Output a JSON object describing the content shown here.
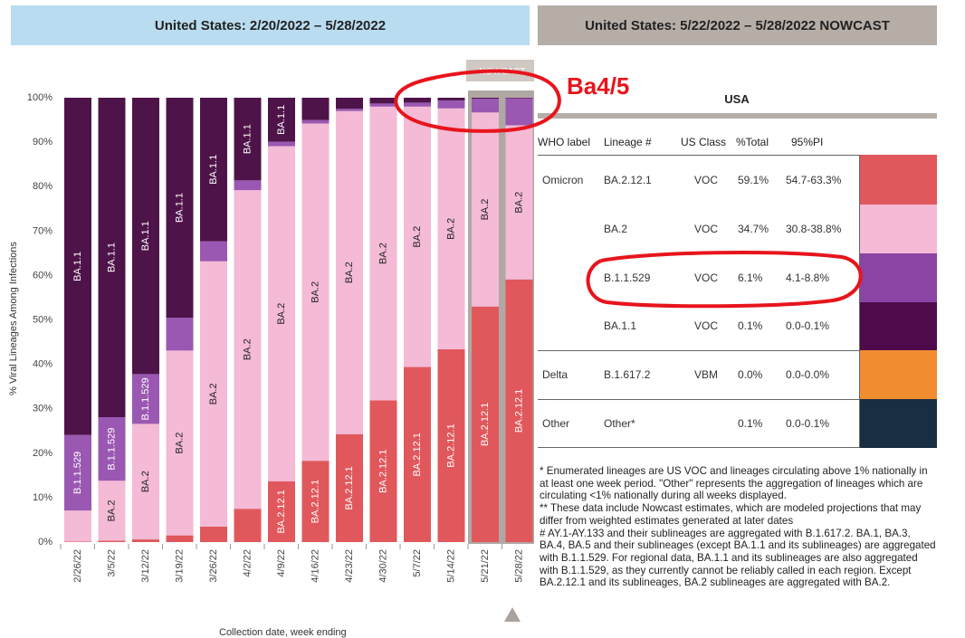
{
  "left_header": "United States: 2/20/2022 – 5/28/2022",
  "right_header": "United States: 5/22/2022 – 5/28/2022 NOWCAST",
  "nowcast_tag": "NOWCAST",
  "annotation": "Ba4/5",
  "chart_data": {
    "type": "bar",
    "stacked": true,
    "ylabel": "% Viral Lineages Among Infections",
    "xlabel": "Collection date, week ending",
    "ylim": [
      0,
      100
    ],
    "yticks": [
      "0%",
      "10%",
      "20%",
      "30%",
      "40%",
      "50%",
      "60%",
      "70%",
      "80%",
      "90%",
      "100%"
    ],
    "grid": false,
    "categories": [
      "2/26/22",
      "3/5/22",
      "3/12/22",
      "3/19/22",
      "3/26/22",
      "4/2/22",
      "4/9/22",
      "4/16/22",
      "4/23/22",
      "4/30/22",
      "5/7/22",
      "5/14/22",
      "5/21/22",
      "5/28/22"
    ],
    "nowcast_categories": [
      "5/21/22",
      "5/28/22"
    ],
    "series": [
      {
        "name": "BA.2.12.1",
        "color": "#e0585c",
        "values": [
          0.1,
          0.3,
          0.6,
          1.5,
          3.5,
          7.5,
          13.7,
          18.3,
          24.3,
          31.9,
          39.4,
          43.4,
          53.0,
          59.1
        ]
      },
      {
        "name": "BA.2",
        "color": "#f4bad6",
        "values": [
          7.0,
          13.5,
          26.0,
          41.6,
          59.7,
          71.7,
          75.4,
          75.9,
          72.7,
          66.1,
          58.6,
          54.2,
          43.7,
          34.7
        ]
      },
      {
        "name": "B.1.1.529",
        "color": "#9a58b2",
        "values": [
          17.0,
          14.3,
          11.2,
          7.4,
          4.5,
          2.2,
          1.0,
          0.8,
          0.5,
          0.7,
          0.9,
          1.8,
          3.1,
          6.1
        ]
      },
      {
        "name": "BA.1.1",
        "color": "#4e1449",
        "values": [
          75.9,
          71.9,
          62.2,
          49.5,
          32.3,
          18.6,
          9.9,
          5.0,
          2.5,
          1.3,
          1.1,
          0.6,
          0.2,
          0.1
        ]
      }
    ],
    "bar_labels": [
      {
        "cat": 0,
        "series": 2,
        "text": "B.1.1.529"
      },
      {
        "cat": 0,
        "series": 3,
        "text": "BA.1.1"
      },
      {
        "cat": 1,
        "series": 1,
        "text": "BA.2"
      },
      {
        "cat": 1,
        "series": 2,
        "text": "B.1.1.529"
      },
      {
        "cat": 1,
        "series": 3,
        "text": "BA.1.1"
      },
      {
        "cat": 2,
        "series": 1,
        "text": "BA.2"
      },
      {
        "cat": 2,
        "series": 2,
        "text": "B.1.1.529"
      },
      {
        "cat": 2,
        "series": 3,
        "text": "BA.1.1"
      },
      {
        "cat": 3,
        "series": 1,
        "text": "BA.2"
      },
      {
        "cat": 3,
        "series": 3,
        "text": "BA.1.1"
      },
      {
        "cat": 4,
        "series": 1,
        "text": "BA.2"
      },
      {
        "cat": 4,
        "series": 3,
        "text": "BA.1.1"
      },
      {
        "cat": 5,
        "series": 1,
        "text": "BA.2"
      },
      {
        "cat": 5,
        "series": 3,
        "text": "BA.1.1"
      },
      {
        "cat": 6,
        "series": 0,
        "text": "BA.2.12.1"
      },
      {
        "cat": 6,
        "series": 1,
        "text": "BA.2"
      },
      {
        "cat": 6,
        "series": 3,
        "text": "BA.1.1"
      },
      {
        "cat": 7,
        "series": 0,
        "text": "BA.2.12.1"
      },
      {
        "cat": 7,
        "series": 1,
        "text": "BA.2"
      },
      {
        "cat": 8,
        "series": 0,
        "text": "BA.2.12.1"
      },
      {
        "cat": 8,
        "series": 1,
        "text": "BA.2"
      },
      {
        "cat": 9,
        "series": 0,
        "text": "BA.2.12.1"
      },
      {
        "cat": 9,
        "series": 1,
        "text": "BA.2"
      },
      {
        "cat": 10,
        "series": 0,
        "text": "BA.2.12.1"
      },
      {
        "cat": 10,
        "series": 1,
        "text": "BA.2"
      },
      {
        "cat": 11,
        "series": 0,
        "text": "BA.2.12.1"
      },
      {
        "cat": 11,
        "series": 1,
        "text": "BA.2"
      },
      {
        "cat": 12,
        "series": 0,
        "text": "BA.2.12.1"
      },
      {
        "cat": 12,
        "series": 1,
        "text": "BA.2"
      },
      {
        "cat": 13,
        "series": 0,
        "text": "BA.2.12.1"
      },
      {
        "cat": 13,
        "series": 1,
        "text": "BA.2"
      }
    ]
  },
  "table": {
    "title": "USA",
    "headers": {
      "who": "WHO label",
      "lineage": "Lineage #",
      "class": "US Class",
      "total": "%Total",
      "pi": "95%PI"
    },
    "rows": [
      {
        "who": "Omicron",
        "lineage": "BA.2.12.1",
        "class": "VOC",
        "total": "59.1%",
        "pi": "54.7-63.3%",
        "color": "#e0585c"
      },
      {
        "who": "",
        "lineage": "BA.2",
        "class": "VOC",
        "total": "34.7%",
        "pi": "30.8-38.8%",
        "color": "#f4bad6"
      },
      {
        "who": "",
        "lineage": "B.1.1.529",
        "class": "VOC",
        "total": "6.1%",
        "pi": "4.1-8.8%",
        "color": "#8a44a4"
      },
      {
        "who": "",
        "lineage": "BA.1.1",
        "class": "VOC",
        "total": "0.1%",
        "pi": "0.0-0.1%",
        "color": "#4e0a4a"
      },
      {
        "who": "Delta",
        "lineage": "B.1.617.2",
        "class": "VBM",
        "total": "0.0%",
        "pi": "0.0-0.0%",
        "color": "#f28c30"
      },
      {
        "who": "Other",
        "lineage": "Other*",
        "class": "",
        "total": "0.1%",
        "pi": "0.0-0.1%",
        "color": "#182e42"
      }
    ]
  },
  "notes": [
    "*      Enumerated lineages are US VOC and lineages circulating above 1% nationally in at least one week period. \"Other\" represents the aggregation of lineages which are circulating <1% nationally during all weeks displayed.",
    "**     These data include Nowcast estimates, which are modeled projections that may differ from weighted estimates generated at later dates",
    "#      AY.1-AY.133 and their sublineages are aggregated with B.1.617.2. BA.1, BA.3, BA.4, BA.5 and their sublineages (except BA.1.1 and its sublineages) are aggregated with B.1.1.529. For regional data, BA.1.1 and its sublineages are also aggregated with B.1.1.529, as they currently cannot be reliably called in each region. Except BA.2.12.1 and its sublineages, BA.2 sublineages are aggregated with BA.2."
  ]
}
